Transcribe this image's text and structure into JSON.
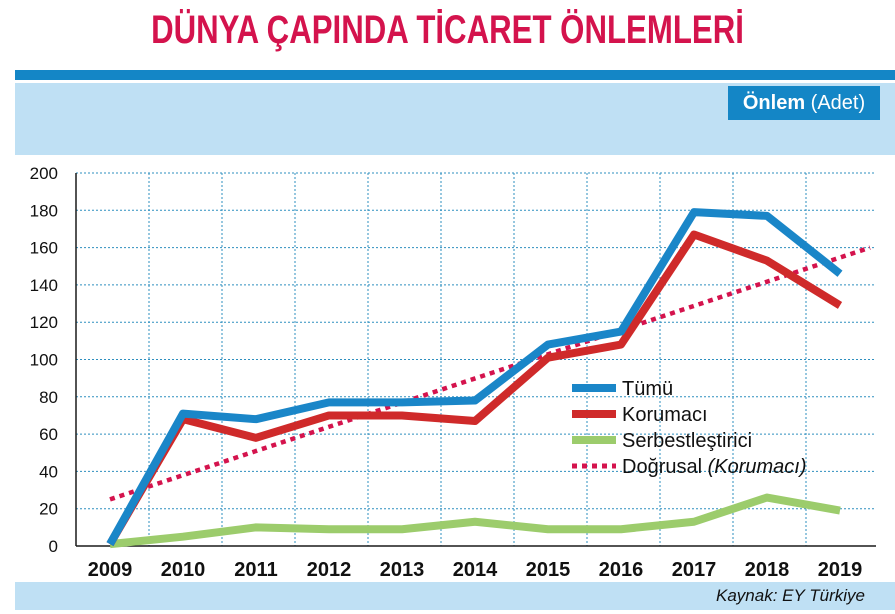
{
  "title": "DÜNYA ÇAPINDA TİCARET ÖNLEMLERİ",
  "unit_label_bold": "Önlem",
  "unit_label_rest": " (Adet)",
  "source": "Kaynak: EY Türkiye",
  "chart_data": {
    "type": "line",
    "x": [
      "2009",
      "2010",
      "2011",
      "2012",
      "2013",
      "2014",
      "2015",
      "2016",
      "2017",
      "2018",
      "2019"
    ],
    "ylim": [
      0,
      200
    ],
    "yticks": [
      0,
      20,
      40,
      60,
      80,
      100,
      120,
      140,
      160,
      180,
      200
    ],
    "grid": true,
    "legend_position": "right",
    "series": [
      {
        "name": "Tümü",
        "color": "#1a86c8",
        "values": [
          1,
          71,
          68,
          77,
          77,
          78,
          108,
          115,
          179,
          177,
          146
        ]
      },
      {
        "name": "Korumacı",
        "color": "#cf2a2a",
        "values": [
          1,
          68,
          58,
          70,
          70,
          67,
          101,
          108,
          167,
          153,
          129
        ]
      },
      {
        "name": "Serbestleştirici",
        "color": "#9ccc6c",
        "values": [
          1,
          5,
          10,
          9,
          9,
          13,
          9,
          9,
          13,
          26,
          19
        ]
      }
    ],
    "trendline": {
      "name": "Doğrusal",
      "name_italic": "(Korumacı)",
      "color": "#d4134d",
      "start": 25,
      "end": 160
    }
  }
}
